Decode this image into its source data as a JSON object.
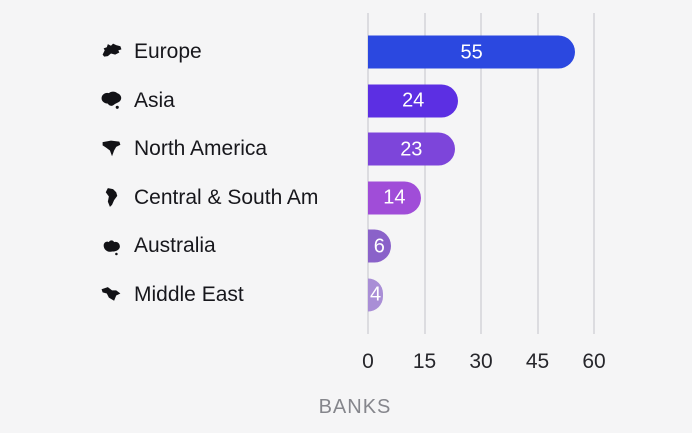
{
  "chart_data": {
    "type": "bar",
    "orientation": "horizontal",
    "title": "",
    "xlabel": "BANKS",
    "ylabel": "",
    "xlim": [
      0,
      60
    ],
    "xticks": [
      0,
      15,
      30,
      45,
      60
    ],
    "grid": "vertical-only",
    "legend": "none",
    "categories": [
      "Europe",
      "Asia",
      "North America",
      "Central & South Am",
      "Australia",
      "Middle East"
    ],
    "values": [
      55,
      24,
      23,
      14,
      6,
      4
    ],
    "icons": [
      "europe-icon",
      "asia-icon",
      "north-america-icon",
      "central-south-america-icon",
      "australia-icon",
      "middle-east-icon"
    ],
    "bar_colors": [
      "#2b48e0",
      "#5c2fe3",
      "#7d45da",
      "#a04dd8",
      "#8a62c9",
      "#a98ed6"
    ],
    "value_label_color": "#ffffff",
    "background_color": "#f5f5f6",
    "gridline_color": "#dcdce0",
    "category_label_color": "#17171c",
    "tick_label_color": "#26262b",
    "axis_label_color": "#85868c"
  }
}
